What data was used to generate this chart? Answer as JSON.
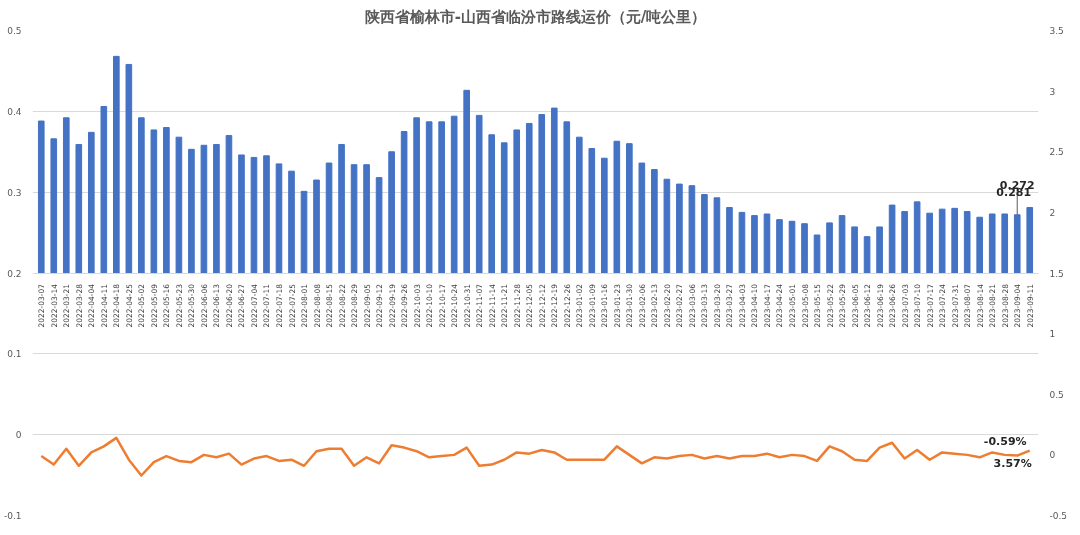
{
  "chart_data": {
    "type": "bar",
    "title": "陕西省榆林市-山西省临汾市路线运价（元/吨公里）",
    "categories": [
      "2022-03-07",
      "2022-03-14",
      "2022-03-21",
      "2022-03-28",
      "2022-04-04",
      "2022-04-11",
      "2022-04-18",
      "2022-04-25",
      "2022-05-02",
      "2022-05-09",
      "2022-05-16",
      "2022-05-23",
      "2022-05-30",
      "2022-06-06",
      "2022-06-13",
      "2022-06-20",
      "2022-06-27",
      "2022-07-04",
      "2022-07-11",
      "2022-07-18",
      "2022-07-25",
      "2022-08-01",
      "2022-08-08",
      "2022-08-15",
      "2022-08-22",
      "2022-08-29",
      "2022-09-05",
      "2022-09-12",
      "2022-09-19",
      "2022-09-26",
      "2022-10-03",
      "2022-10-10",
      "2022-10-17",
      "2022-10-24",
      "2022-10-31",
      "2022-11-07",
      "2022-11-14",
      "2022-11-21",
      "2022-11-28",
      "2022-12-05",
      "2022-12-12",
      "2022-12-19",
      "2022-12-26",
      "2023-01-02",
      "2023-01-09",
      "2023-01-16",
      "2023-01-23",
      "2023-01-30",
      "2023-02-06",
      "2023-02-13",
      "2023-02-20",
      "2023-02-27",
      "2023-03-06",
      "2023-03-13",
      "2023-03-20",
      "2023-03-27",
      "2023-04-03",
      "2023-04-10",
      "2023-04-17",
      "2023-04-24",
      "2023-05-01",
      "2023-05-08",
      "2023-05-15",
      "2023-05-22",
      "2023-05-29",
      "2023-06-05",
      "2023-06-12",
      "2023-06-19",
      "2023-06-26",
      "2023-07-03",
      "2023-07-10",
      "2023-07-17",
      "2023-07-24",
      "2023-07-31",
      "2023-08-07",
      "2023-08-14",
      "2023-08-21",
      "2023-08-28",
      "2023-09-04",
      "2023-09-11"
    ],
    "series": [
      {
        "color": "#4472c4",
        "values": [
          0.188,
          0.166,
          0.192,
          0.159,
          0.174,
          0.206,
          0.268,
          0.258,
          0.192,
          0.177,
          0.18,
          0.168,
          0.153,
          0.158,
          0.159,
          0.17,
          0.146,
          0.143,
          0.145,
          0.135,
          0.126,
          0.101,
          0.115,
          0.136,
          0.159,
          0.134,
          0.134,
          0.118,
          0.15,
          0.175,
          0.192,
          0.187,
          0.187,
          0.194,
          0.226,
          0.195,
          0.171,
          0.161,
          0.177,
          0.185,
          0.196,
          0.204,
          0.187,
          0.168,
          0.154,
          0.142,
          0.163,
          0.16,
          0.136,
          0.128,
          0.116,
          0.11,
          0.108,
          0.097,
          0.093,
          0.081,
          0.075,
          0.071,
          0.073,
          0.066,
          0.064,
          0.061,
          0.047,
          0.062,
          0.071,
          0.057,
          0.045,
          0.057,
          0.084,
          0.076,
          0.088,
          0.074,
          0.079,
          0.08,
          0.076,
          0.069,
          0.073,
          0.073,
          0.072,
          0.081
        ],
        "base": [
          0.2,
          0.2,
          0.2,
          0.2,
          0.2,
          0.2,
          0.2,
          0.2,
          0.2,
          0.2,
          0.2,
          0.2,
          0.2,
          0.2,
          0.2,
          0.2,
          0.2,
          0.2,
          0.2,
          0.2,
          0.2,
          0.2,
          0.2,
          0.2,
          0.2,
          0.2,
          0.2,
          0.2,
          0.2,
          0.2,
          0.2,
          0.2,
          0.2,
          0.2,
          0.2,
          0.2,
          0.2,
          0.2,
          0.2,
          0.2,
          0.2,
          0.2,
          0.2,
          0.2,
          0.2,
          0.2,
          0.2,
          0.2,
          0.2,
          0.2,
          0.2,
          0.2,
          0.2,
          0.2,
          0.2,
          0.2,
          0.2,
          0.2,
          0.2,
          0.2,
          0.2,
          0.2,
          0.2,
          0.2,
          0.2,
          0.2,
          0.2,
          0.2,
          0.2,
          0.2,
          0.2,
          0.2,
          0.2,
          0.2,
          0.2,
          0.2,
          0.2,
          0.2,
          0.2,
          0.2
        ]
      },
      {
        "type": "line",
        "axis": "y2",
        "color": "#ed7d31",
        "values": [
          -0.01,
          -0.08,
          0.05,
          -0.09,
          0.02,
          0.07,
          0.14,
          -0.04,
          -0.17,
          -0.06,
          -0.01,
          -0.05,
          -0.06,
          0.0,
          -0.02,
          0.01,
          -0.08,
          -0.03,
          -0.01,
          -0.05,
          -0.04,
          -0.09,
          0.03,
          0.05,
          0.05,
          -0.09,
          -0.02,
          -0.07,
          0.08,
          0.06,
          0.03,
          -0.02,
          -0.01,
          0.0,
          0.06,
          -0.09,
          -0.08,
          -0.04,
          0.02,
          0.01,
          0.04,
          0.02,
          -0.04,
          -0.04,
          -0.04,
          -0.04,
          0.07,
          0.0,
          -0.07,
          -0.02,
          -0.03,
          -0.01,
          0.0,
          -0.03,
          -0.01,
          -0.03,
          -0.01,
          -0.01,
          0.01,
          -0.02,
          0.0,
          -0.01,
          -0.05,
          0.07,
          0.03,
          -0.04,
          -0.05,
          0.06,
          0.1,
          -0.03,
          0.04,
          -0.04,
          0.02,
          0.01,
          0.0,
          -0.02,
          0.02,
          0.0,
          -0.0059,
          0.0357
        ],
        "value_labels": [
          null,
          null,
          null,
          null,
          null,
          null,
          null,
          null,
          null,
          null,
          null,
          null,
          null,
          null,
          null,
          null,
          null,
          null,
          null,
          null,
          null,
          null,
          null,
          null,
          null,
          null,
          null,
          null,
          null,
          null,
          null,
          null,
          null,
          null,
          null,
          null,
          null,
          null,
          null,
          null,
          null,
          null,
          null,
          null,
          null,
          null,
          null,
          null,
          null,
          null,
          null,
          null,
          null,
          null,
          null,
          null,
          null,
          null,
          null,
          null,
          null,
          null,
          null,
          null,
          null,
          null,
          null,
          null,
          null,
          null,
          null,
          null,
          null,
          null,
          null,
          null,
          null,
          null,
          "-0.59%",
          "3.57%"
        ]
      }
    ],
    "ylim": [
      -0.1,
      0.5
    ],
    "yticks": [
      -0.1,
      0,
      0.1,
      0.2,
      0.3,
      0.4,
      0.5
    ],
    "y2lim": [
      -0.5,
      3.5
    ],
    "y2ticks": [
      -0.5,
      0,
      0.5,
      1,
      1.5,
      2,
      2.5,
      3,
      3.5
    ],
    "grid": "y",
    "annotations": [
      {
        "text": "0.272",
        "x": "2023-09-04",
        "y": 0.272
      },
      {
        "text": "0.281",
        "x": "2023-09-11",
        "y": 0.281
      }
    ]
  }
}
